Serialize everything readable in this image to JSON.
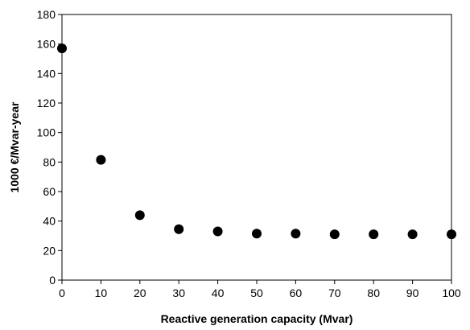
{
  "chart_data": {
    "type": "scatter",
    "title": "",
    "xlabel": "Reactive generation capacity (Mvar)",
    "ylabel": "1000 €/Mvar-year",
    "xlim": [
      0,
      100
    ],
    "ylim": [
      0,
      180
    ],
    "xticks": [
      0,
      10,
      20,
      30,
      40,
      50,
      60,
      70,
      80,
      90,
      100
    ],
    "yticks": [
      0,
      20,
      40,
      60,
      80,
      100,
      120,
      140,
      160,
      180
    ],
    "grid": false,
    "legend": "none",
    "marker_color": "#000000",
    "series": [
      {
        "x": [
          0,
          10,
          20,
          30,
          40,
          50,
          60,
          70,
          80,
          90,
          100
        ],
        "y": [
          157,
          81.5,
          44,
          34.5,
          33,
          31.5,
          31.5,
          31,
          31,
          31,
          31
        ]
      }
    ]
  }
}
